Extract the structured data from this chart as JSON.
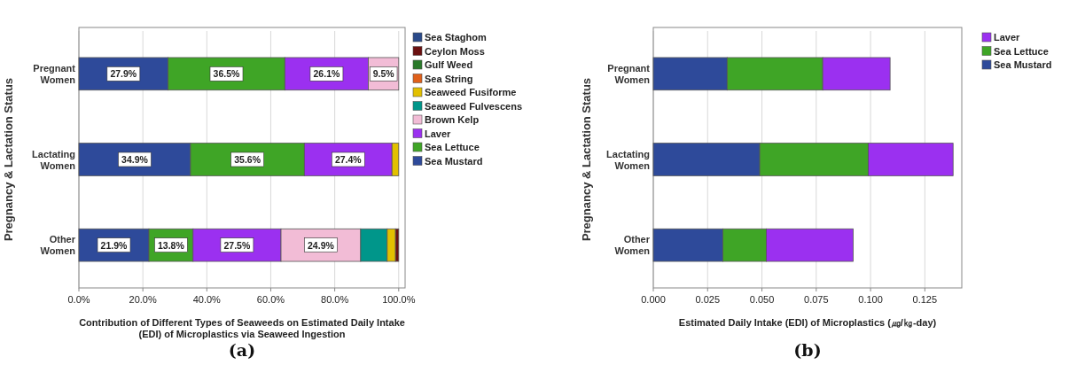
{
  "chart_data": [
    {
      "type": "bar",
      "orientation": "horizontal",
      "stacked": true,
      "title": "(a)",
      "xlabel": "Contribution of Different Types of Seaweeds on Estimated Daily Intake (EDI) of Microplastics via Seaweed Ingestion",
      "ylabel": "Pregnancy & Lactation Status",
      "categories": [
        "Pregnant Women",
        "Lactating Women",
        "Other Women"
      ],
      "xlim": [
        0,
        102
      ],
      "xticks": [
        {
          "value": 0,
          "label": "0.0%"
        },
        {
          "value": 20,
          "label": "20.0%"
        },
        {
          "value": 40,
          "label": "40.0%"
        },
        {
          "value": 60,
          "label": "60.0%"
        },
        {
          "value": 80,
          "label": "80.0%"
        },
        {
          "value": 100,
          "label": "100.0%"
        }
      ],
      "grid": "x",
      "legend": "right",
      "series": [
        {
          "name": "Sea Mustard",
          "color": "#2e4a9a",
          "values": [
            27.9,
            34.9,
            21.9
          ],
          "value_labels": [
            "27.9%",
            "34.9%",
            "21.9%"
          ]
        },
        {
          "name": "Sea Lettuce",
          "color": "#3fa526",
          "values": [
            36.5,
            35.6,
            13.8
          ],
          "value_labels": [
            "36.5%",
            "35.6%",
            "13.8%"
          ]
        },
        {
          "name": "Laver",
          "color": "#9b30f0",
          "values": [
            26.1,
            27.4,
            27.5
          ],
          "value_labels": [
            "26.1%",
            "27.4%",
            "27.5%"
          ]
        },
        {
          "name": "Brown Kelp",
          "color": "#f2bcd6",
          "values": [
            9.5,
            0,
            24.9
          ],
          "value_labels": [
            "9.5%",
            null,
            "24.9%"
          ]
        },
        {
          "name": "Seaweed Fulvescens",
          "color": "#00968a",
          "values": [
            0,
            0,
            8.3
          ]
        },
        {
          "name": "Seaweed Fusiforme",
          "color": "#e2c000",
          "values": [
            0,
            2.1,
            2.6
          ]
        },
        {
          "name": "Sea String",
          "color": "#e0601a",
          "values": [
            0,
            0,
            0
          ]
        },
        {
          "name": "Gulf Weed",
          "color": "#2a7a2a",
          "values": [
            0,
            0,
            0
          ]
        },
        {
          "name": "Ceylon Moss",
          "color": "#6a1010",
          "values": [
            0,
            0,
            1.0
          ]
        },
        {
          "name": "Sea Staghom",
          "color": "#2a4a8a",
          "values": [
            0,
            0,
            0
          ]
        }
      ]
    },
    {
      "type": "bar",
      "orientation": "horizontal",
      "stacked": true,
      "title": "(b)",
      "xlabel": "Estimated Daily Intake (EDI) of Microplastics (㎍/㎏-day)",
      "ylabel": "Pregnancy & Lactation Status",
      "categories": [
        "Pregnant Women",
        "Lactating Women",
        "Other Women"
      ],
      "xlim": [
        0,
        0.142
      ],
      "xticks": [
        {
          "value": 0,
          "label": "0.000"
        },
        {
          "value": 0.025,
          "label": "0.025"
        },
        {
          "value": 0.05,
          "label": "0.050"
        },
        {
          "value": 0.075,
          "label": "0.075"
        },
        {
          "value": 0.1,
          "label": "0.100"
        },
        {
          "value": 0.125,
          "label": "0.125"
        }
      ],
      "grid": "x",
      "legend": "right",
      "series": [
        {
          "name": "Sea Mustard",
          "color": "#2e4a9a",
          "values": [
            0.034,
            0.049,
            0.032
          ]
        },
        {
          "name": "Sea Lettuce",
          "color": "#3fa526",
          "values": [
            0.044,
            0.05,
            0.02
          ]
        },
        {
          "name": "Laver",
          "color": "#9b30f0",
          "values": [
            0.031,
            0.039,
            0.04
          ]
        }
      ]
    }
  ]
}
